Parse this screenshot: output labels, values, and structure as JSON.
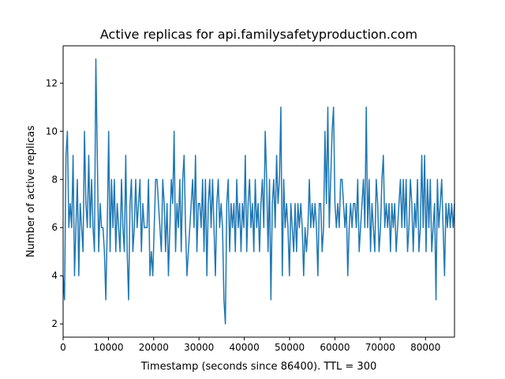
{
  "chart_data": {
    "type": "line",
    "title": "Active replicas for api.familysafetyproduction.com",
    "xlabel": "Timestamp (seconds since 86400). TTL = 300",
    "ylabel": "Number of active replicas",
    "xlim": [
      0,
      86400
    ],
    "ylim": [
      1.45,
      13.55
    ],
    "xticks": [
      0,
      10000,
      20000,
      30000,
      40000,
      50000,
      60000,
      70000,
      80000
    ],
    "xtick_labels": [
      "0",
      "10000",
      "20000",
      "30000",
      "40000",
      "50000",
      "60000",
      "70000",
      "80000"
    ],
    "yticks": [
      2,
      4,
      6,
      8,
      10,
      12
    ],
    "ytick_labels": [
      "2",
      "4",
      "6",
      "8",
      "10",
      "12"
    ],
    "grid": false,
    "line_color": "#1f77b4",
    "series": [
      {
        "values": [
          4,
          3,
          9,
          10,
          6,
          7,
          6,
          9,
          4,
          6,
          8,
          4,
          7,
          6,
          5,
          10,
          7,
          6,
          9,
          6,
          8,
          6,
          5,
          13,
          9,
          5,
          7,
          6,
          6,
          5,
          3,
          6,
          10,
          5,
          8,
          6,
          8,
          5,
          7,
          6,
          5,
          8,
          6,
          5,
          9,
          5,
          3,
          7,
          8,
          5,
          6,
          8,
          6,
          7,
          8,
          5,
          7,
          6,
          6,
          6,
          8,
          4,
          5,
          4,
          6,
          8,
          8,
          7,
          6,
          5,
          8,
          7,
          5,
          7,
          4,
          6,
          8,
          7,
          10,
          5,
          7,
          6,
          8,
          5,
          8,
          9,
          6,
          4,
          5,
          6,
          7,
          8,
          6,
          9,
          5,
          7,
          7,
          6,
          8,
          5,
          8,
          4,
          7,
          8,
          6,
          8,
          6,
          4,
          7,
          8,
          6,
          7,
          6,
          3,
          2,
          7,
          8,
          5,
          7,
          6,
          7,
          5,
          8,
          6,
          7,
          5,
          7,
          6,
          9,
          5,
          7,
          8,
          6,
          7,
          5,
          8,
          6,
          7,
          5,
          7,
          8,
          6,
          10,
          8,
          5,
          8,
          3,
          7,
          8,
          6,
          9,
          7,
          8,
          11,
          4,
          8,
          6,
          7,
          6,
          4,
          7,
          6,
          5,
          7,
          5,
          7,
          6,
          7,
          6,
          4,
          6,
          5,
          6,
          8,
          6,
          7,
          6,
          7,
          6,
          4,
          7,
          7,
          5,
          6,
          10,
          7,
          11,
          6,
          8,
          10,
          11,
          7,
          6,
          7,
          6,
          8,
          8,
          7,
          6,
          7,
          4,
          6,
          7,
          6,
          7,
          7,
          6,
          8,
          5,
          6,
          7,
          8,
          6,
          11,
          6,
          8,
          5,
          7,
          6,
          5,
          8,
          7,
          5,
          6,
          8,
          9,
          6,
          7,
          6,
          7,
          5,
          7,
          6,
          7,
          5,
          6,
          7,
          8,
          6,
          8,
          6,
          8,
          5,
          6,
          8,
          7,
          5,
          7,
          6,
          8,
          5,
          6,
          9,
          6,
          9,
          5,
          8,
          6,
          8,
          5,
          6,
          7,
          3,
          8,
          6,
          7,
          8,
          6,
          4,
          7,
          6,
          7,
          6,
          7,
          6,
          7
        ]
      }
    ]
  }
}
